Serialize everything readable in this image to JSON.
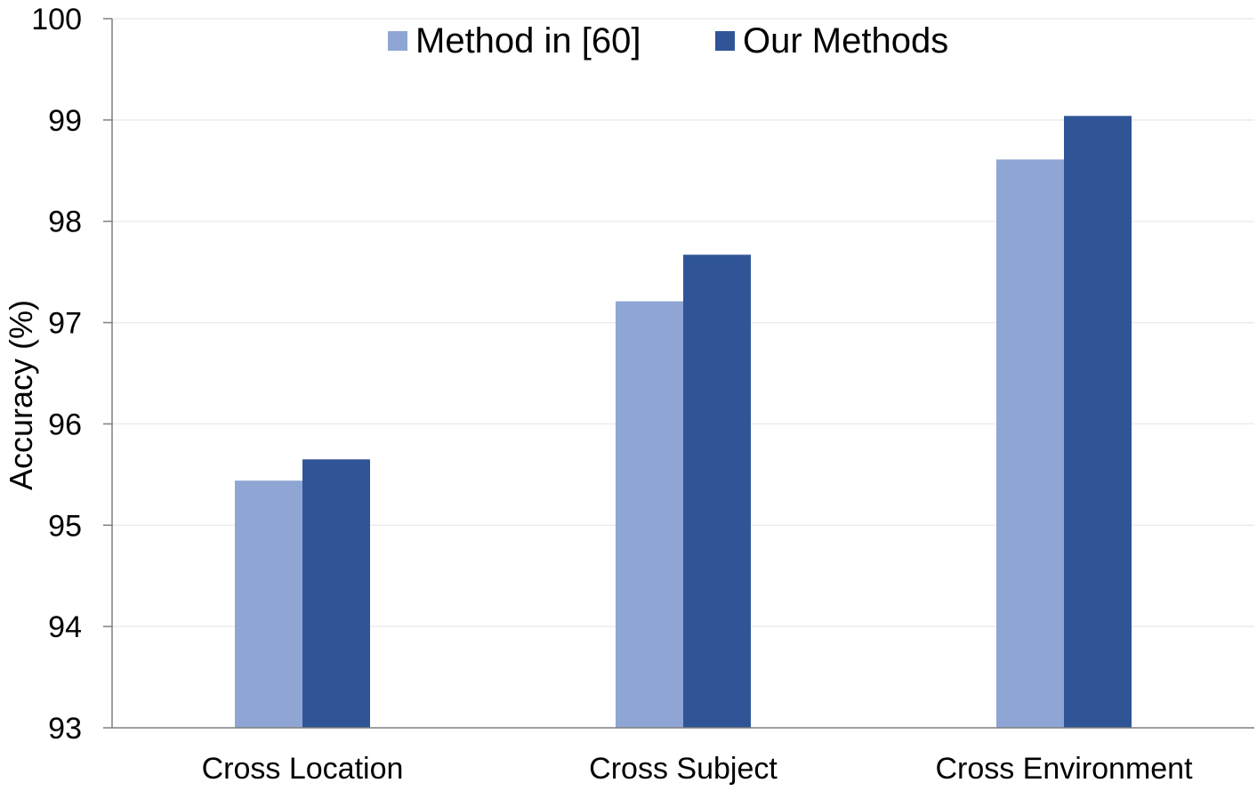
{
  "chart_data": {
    "type": "bar",
    "title": "",
    "xlabel": "",
    "ylabel": "Accuracy (%)",
    "ylim": [
      93,
      100
    ],
    "yticks": [
      "93",
      "94",
      "95",
      "96",
      "97",
      "98",
      "99",
      "100"
    ],
    "categories": [
      "Cross Location",
      "Cross Subject",
      "Cross Environment"
    ],
    "series": [
      {
        "name": "Method in [60]",
        "color": "#8fa5d4",
        "values": [
          95.44,
          97.21,
          98.61
        ]
      },
      {
        "name": "Our Methods",
        "color": "#2f5597",
        "values": [
          95.65,
          97.67,
          99.04
        ]
      }
    ],
    "grid": true,
    "legend_position": "top-center"
  }
}
